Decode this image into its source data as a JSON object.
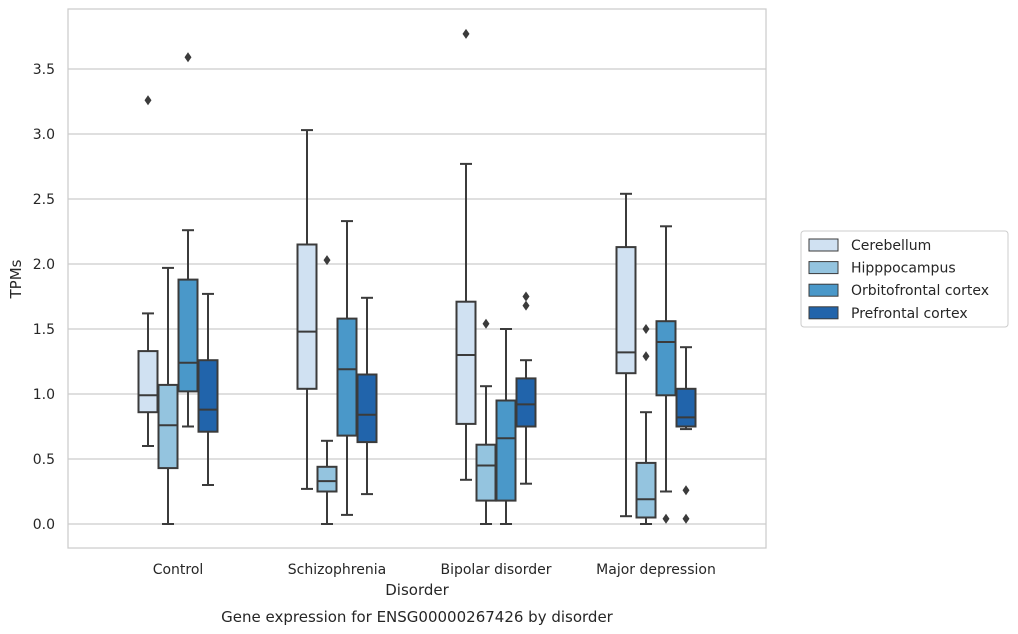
{
  "chart_data": {
    "type": "box",
    "caption": "Gene expression for ENSG00000267426 by disorder",
    "xlabel": "Disorder",
    "ylabel": "TPMs",
    "ylim": [
      -0.18,
      3.98
    ],
    "yticks": [
      0.0,
      0.5,
      1.0,
      1.5,
      2.0,
      2.5,
      3.0,
      3.5
    ],
    "ytick_labels": [
      "0.0",
      "0.5",
      "1.0",
      "1.5",
      "2.0",
      "2.5",
      "3.0",
      "3.5"
    ],
    "grid": "horizontal",
    "legend_position": "right",
    "categories": [
      "Control",
      "Schizophrenia",
      "Bipolar disorder",
      "Major depression"
    ],
    "series": [
      {
        "name": "Cerebellum",
        "color": "#d0e1f2",
        "boxes": [
          {
            "whisker_low": 0.6,
            "q1": 0.86,
            "median": 0.99,
            "q3": 1.33,
            "whisker_high": 1.62,
            "outliers": [
              3.26
            ]
          },
          {
            "whisker_low": 0.27,
            "q1": 1.04,
            "median": 1.48,
            "q3": 2.15,
            "whisker_high": 3.03,
            "outliers": []
          },
          {
            "whisker_low": 0.34,
            "q1": 0.77,
            "median": 1.3,
            "q3": 1.71,
            "whisker_high": 2.77,
            "outliers": [
              3.77
            ]
          },
          {
            "whisker_low": 0.06,
            "q1": 1.16,
            "median": 1.32,
            "q3": 2.13,
            "whisker_high": 2.54,
            "outliers": []
          }
        ]
      },
      {
        "name": "Hipppocampus",
        "color": "#94c4df",
        "boxes": [
          {
            "whisker_low": 0.0,
            "q1": 0.43,
            "median": 0.76,
            "q3": 1.07,
            "whisker_high": 1.97,
            "outliers": []
          },
          {
            "whisker_low": 0.0,
            "q1": 0.25,
            "median": 0.33,
            "q3": 0.44,
            "whisker_high": 0.64,
            "outliers": [
              2.03
            ]
          },
          {
            "whisker_low": 0.0,
            "q1": 0.18,
            "median": 0.45,
            "q3": 0.61,
            "whisker_high": 1.06,
            "outliers": [
              1.54
            ]
          },
          {
            "whisker_low": 0.0,
            "q1": 0.05,
            "median": 0.19,
            "q3": 0.47,
            "whisker_high": 0.86,
            "outliers": [
              1.5,
              1.29
            ]
          }
        ]
      },
      {
        "name": "Orbitofrontal cortex",
        "color": "#4a98c9",
        "boxes": [
          {
            "whisker_low": 0.75,
            "q1": 1.02,
            "median": 1.24,
            "q3": 1.88,
            "whisker_high": 2.26,
            "outliers": [
              3.59
            ]
          },
          {
            "whisker_low": 0.07,
            "q1": 0.68,
            "median": 1.19,
            "q3": 1.58,
            "whisker_high": 2.33,
            "outliers": []
          },
          {
            "whisker_low": 0.0,
            "q1": 0.18,
            "median": 0.66,
            "q3": 0.95,
            "whisker_high": 1.5,
            "outliers": []
          },
          {
            "whisker_low": 0.25,
            "q1": 0.99,
            "median": 1.4,
            "q3": 1.56,
            "whisker_high": 2.29,
            "outliers": [
              0.04
            ]
          }
        ]
      },
      {
        "name": "Prefrontal cortex",
        "color": "#2164ab",
        "boxes": [
          {
            "whisker_low": 0.3,
            "q1": 0.71,
            "median": 0.88,
            "q3": 1.26,
            "whisker_high": 1.77,
            "outliers": []
          },
          {
            "whisker_low": 0.23,
            "q1": 0.63,
            "median": 0.84,
            "q3": 1.15,
            "whisker_high": 1.74,
            "outliers": []
          },
          {
            "whisker_low": 0.31,
            "q1": 0.75,
            "median": 0.92,
            "q3": 1.12,
            "whisker_high": 1.26,
            "outliers": [
              1.68,
              1.75
            ]
          },
          {
            "whisker_low": 0.73,
            "q1": 0.75,
            "median": 0.82,
            "q3": 1.04,
            "whisker_high": 1.36,
            "outliers": [
              0.26,
              0.04
            ]
          }
        ]
      }
    ]
  }
}
